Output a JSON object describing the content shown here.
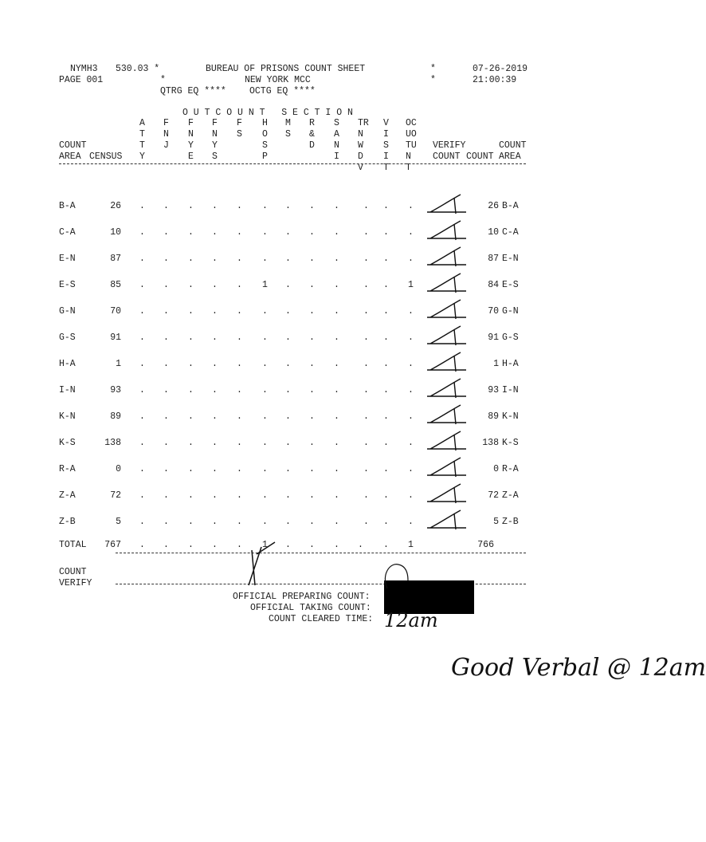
{
  "header": {
    "system": "NYMH3",
    "code": "530.03 *",
    "page": "PAGE 001",
    "star2": "*",
    "title": "BUREAU OF PRISONS COUNT SHEET",
    "facility": "NEW YORK MCC",
    "qtrg": "QTRG EQ ****",
    "octg": "OCTG EQ ****",
    "star_right1": "*",
    "star_right2": "*",
    "date": "07-26-2019",
    "time": "21:00:39"
  },
  "section_title": "O U T C O U N T   S E C T I O N",
  "columns": [
    [
      "A",
      "T",
      "T",
      "Y"
    ],
    [
      "F",
      "N",
      "J"
    ],
    [
      "F",
      "N",
      "Y",
      "E"
    ],
    [
      "F",
      "N",
      "Y",
      "S"
    ],
    [
      "F",
      "S"
    ],
    [
      "H",
      "O",
      "S",
      "P"
    ],
    [
      "M",
      "S"
    ],
    [
      "R",
      "&",
      "D"
    ],
    [
      "S",
      "A",
      "N",
      "I"
    ],
    [
      "TR",
      "N",
      "W",
      "D",
      "V"
    ],
    [
      "V",
      "I",
      "S",
      "I",
      "T"
    ],
    [
      "OC",
      "UO",
      "TU",
      "N",
      "T"
    ]
  ],
  "left_headers": {
    "count": "COUNT",
    "area": "AREA",
    "census": "CENSUS"
  },
  "right_headers": {
    "verify": "VERIFY",
    "count_top": "COUNT",
    "verify_count": "COUNT",
    "count": "COUNT",
    "area": "AREA"
  },
  "rows": [
    {
      "area": "B-A",
      "census": "26",
      "values": [
        ".",
        ".",
        ".",
        ".",
        ".",
        ".",
        ".",
        ".",
        ".",
        ".",
        ".",
        "."
      ],
      "count": "26",
      "count_area": "B-A"
    },
    {
      "area": "C-A",
      "census": "10",
      "values": [
        ".",
        ".",
        ".",
        ".",
        ".",
        ".",
        ".",
        ".",
        ".",
        ".",
        ".",
        "."
      ],
      "count": "10",
      "count_area": "C-A"
    },
    {
      "area": "E-N",
      "census": "87",
      "values": [
        ".",
        ".",
        ".",
        ".",
        ".",
        ".",
        ".",
        ".",
        ".",
        ".",
        ".",
        "."
      ],
      "count": "87",
      "count_area": "E-N"
    },
    {
      "area": "E-S",
      "census": "85",
      "values": [
        ".",
        ".",
        ".",
        ".",
        ".",
        "1",
        ".",
        ".",
        ".",
        ".",
        ".",
        "1"
      ],
      "count": "84",
      "count_area": "E-S"
    },
    {
      "area": "G-N",
      "census": "70",
      "values": [
        ".",
        ".",
        ".",
        ".",
        ".",
        ".",
        ".",
        ".",
        ".",
        ".",
        ".",
        "."
      ],
      "count": "70",
      "count_area": "G-N"
    },
    {
      "area": "G-S",
      "census": "91",
      "values": [
        ".",
        ".",
        ".",
        ".",
        ".",
        ".",
        ".",
        ".",
        ".",
        ".",
        ".",
        "."
      ],
      "count": "91",
      "count_area": "G-S"
    },
    {
      "area": "H-A",
      "census": "1",
      "values": [
        ".",
        ".",
        ".",
        ".",
        ".",
        ".",
        ".",
        ".",
        ".",
        ".",
        ".",
        "."
      ],
      "count": "1",
      "count_area": "H-A"
    },
    {
      "area": "I-N",
      "census": "93",
      "values": [
        ".",
        ".",
        ".",
        ".",
        ".",
        ".",
        ".",
        ".",
        ".",
        ".",
        ".",
        "."
      ],
      "count": "93",
      "count_area": "I-N"
    },
    {
      "area": "K-N",
      "census": "89",
      "values": [
        ".",
        ".",
        ".",
        ".",
        ".",
        ".",
        ".",
        ".",
        ".",
        ".",
        ".",
        "."
      ],
      "count": "89",
      "count_area": "K-N"
    },
    {
      "area": "K-S",
      "census": "138",
      "values": [
        ".",
        ".",
        ".",
        ".",
        ".",
        ".",
        ".",
        ".",
        ".",
        ".",
        ".",
        "."
      ],
      "count": "138",
      "count_area": "K-S"
    },
    {
      "area": "R-A",
      "census": "0",
      "values": [
        ".",
        ".",
        ".",
        ".",
        ".",
        ".",
        ".",
        ".",
        ".",
        ".",
        ".",
        "."
      ],
      "count": "0",
      "count_area": "R-A"
    },
    {
      "area": "Z-A",
      "census": "72",
      "values": [
        ".",
        ".",
        ".",
        ".",
        ".",
        ".",
        ".",
        ".",
        ".",
        ".",
        ".",
        "."
      ],
      "count": "72",
      "count_area": "Z-A"
    },
    {
      "area": "Z-B",
      "census": "5",
      "values": [
        ".",
        ".",
        ".",
        ".",
        ".",
        ".",
        ".",
        ".",
        ".",
        ".",
        ".",
        "."
      ],
      "count": "5",
      "count_area": "Z-B"
    }
  ],
  "total": {
    "label": "TOTAL",
    "census": "767",
    "values": [
      ".",
      ".",
      ".",
      ".",
      ".",
      "1",
      ".",
      ".",
      ".",
      ".",
      ".",
      "1"
    ],
    "count": "766"
  },
  "count_verify": {
    "line1": "COUNT",
    "line2": "VERIFY"
  },
  "officials": {
    "preparing": "OFFICIAL PREPARING COUNT:",
    "taking": "OFFICIAL TAKING COUNT:",
    "cleared": "COUNT CLEARED TIME:",
    "cleared_handwritten": "12am"
  },
  "handwritten_note": "Good Verbal @ 12am"
}
